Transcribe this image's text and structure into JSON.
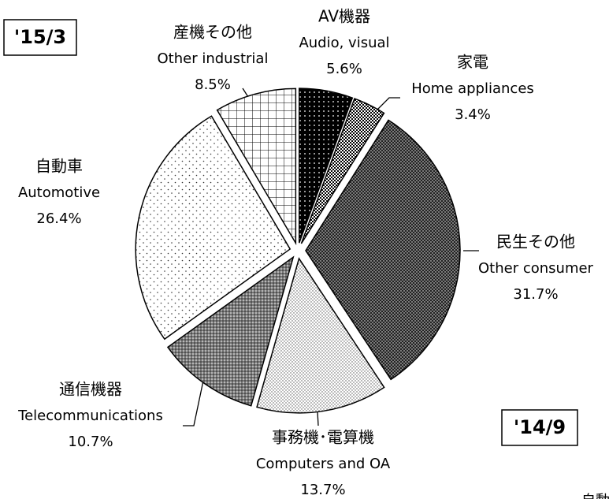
{
  "chart_data": {
    "type": "pie",
    "categories": [
      "AV機器",
      "家電",
      "民生その他",
      "事務機･電算機",
      "通信機器",
      "自動車",
      "産機その他"
    ],
    "categories_en": [
      "Audio, visual",
      "Home appliances",
      "Other consumer",
      "Computers and OA",
      "Telecommunications",
      "Automotive",
      "Other industrial"
    ],
    "values": [
      5.6,
      3.4,
      31.7,
      13.7,
      10.7,
      26.4,
      8.5
    ],
    "value_labels": [
      "5.6%",
      "3.4%",
      "31.7%",
      "13.7%",
      "10.7%",
      "26.4%",
      "8.5%"
    ],
    "patterns": [
      "black-dots",
      "checker",
      "dark-dots",
      "light-dots",
      "grey-dots",
      "sparse-dots",
      "grid"
    ],
    "annotations": [
      "'15/3",
      "'14/9",
      "自動"
    ]
  }
}
